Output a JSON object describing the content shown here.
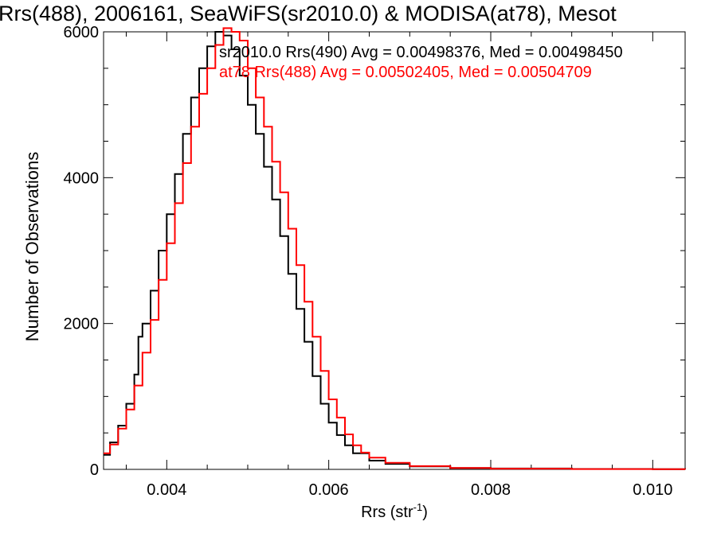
{
  "chart_data": {
    "type": "line",
    "title": "Rrs(488), 2006161, SeaWiFS(sr2010.0) & MODISA(at78), Mesot",
    "xlabel_main": "Rrs (str",
    "xlabel_sup": "-1",
    "xlabel_close": ")",
    "ylabel": "Number of Observations",
    "xlim": [
      0.00322,
      0.0104
    ],
    "ylim": [
      0,
      6000
    ],
    "x_ticks": [
      "0.004",
      "0.006",
      "0.008",
      "0.010"
    ],
    "x_tick_values": [
      0.004,
      0.006,
      0.008,
      0.01
    ],
    "y_ticks": [
      "0",
      "2000",
      "4000",
      "6000"
    ],
    "y_tick_values": [
      0,
      2000,
      4000,
      6000
    ],
    "grid": false,
    "legend_position": "top-right",
    "series": [
      {
        "name": "sr2010.0 Rrs(490) Avg = 0.00498376, Med = 0.00498450",
        "color": "#000000",
        "points": [
          [
            0.00322,
            200
          ],
          [
            0.0033,
            370
          ],
          [
            0.0034,
            600
          ],
          [
            0.0035,
            900
          ],
          [
            0.0036,
            1300
          ],
          [
            0.00365,
            1820
          ],
          [
            0.0037,
            2000
          ],
          [
            0.0038,
            2450
          ],
          [
            0.0039,
            3000
          ],
          [
            0.004,
            3500
          ],
          [
            0.0041,
            4050
          ],
          [
            0.0042,
            4600
          ],
          [
            0.0043,
            5100
          ],
          [
            0.0044,
            5500
          ],
          [
            0.0045,
            5800
          ],
          [
            0.0046,
            6000
          ],
          [
            0.0047,
            5950
          ],
          [
            0.0048,
            5760
          ],
          [
            0.0049,
            5400
          ],
          [
            0.005,
            5000
          ],
          [
            0.0051,
            4600
          ],
          [
            0.0052,
            4150
          ],
          [
            0.0053,
            3700
          ],
          [
            0.0054,
            3200
          ],
          [
            0.0055,
            2680
          ],
          [
            0.0056,
            2200
          ],
          [
            0.0057,
            1750
          ],
          [
            0.0058,
            1280
          ],
          [
            0.0059,
            900
          ],
          [
            0.006,
            640
          ],
          [
            0.0061,
            470
          ],
          [
            0.0062,
            330
          ],
          [
            0.0063,
            220
          ],
          [
            0.0065,
            120
          ],
          [
            0.0067,
            75
          ],
          [
            0.007,
            40
          ],
          [
            0.0075,
            20
          ],
          [
            0.008,
            12
          ],
          [
            0.009,
            5
          ],
          [
            0.01,
            2
          ],
          [
            0.0104,
            1
          ]
        ]
      },
      {
        "name": "at78 Rrs(488) Avg = 0.00502405, Med = 0.00504709",
        "color": "#ff0000",
        "points": [
          [
            0.00322,
            220
          ],
          [
            0.0033,
            340
          ],
          [
            0.0034,
            560
          ],
          [
            0.0035,
            820
          ],
          [
            0.0036,
            1150
          ],
          [
            0.0037,
            1600
          ],
          [
            0.0038,
            2050
          ],
          [
            0.0039,
            2600
          ],
          [
            0.004,
            3100
          ],
          [
            0.0041,
            3650
          ],
          [
            0.0042,
            4200
          ],
          [
            0.0043,
            4700
          ],
          [
            0.0044,
            5150
          ],
          [
            0.0045,
            5500
          ],
          [
            0.0046,
            5820
          ],
          [
            0.0047,
            6050
          ],
          [
            0.0048,
            6000
          ],
          [
            0.0049,
            5880
          ],
          [
            0.005,
            5500
          ],
          [
            0.0051,
            5100
          ],
          [
            0.0052,
            4700
          ],
          [
            0.0053,
            4220
          ],
          [
            0.0054,
            3800
          ],
          [
            0.0055,
            3300
          ],
          [
            0.0056,
            2800
          ],
          [
            0.0057,
            2300
          ],
          [
            0.0058,
            1820
          ],
          [
            0.0059,
            1350
          ],
          [
            0.006,
            960
          ],
          [
            0.0061,
            710
          ],
          [
            0.0062,
            480
          ],
          [
            0.0063,
            330
          ],
          [
            0.0064,
            230
          ],
          [
            0.0065,
            160
          ],
          [
            0.0067,
            90
          ],
          [
            0.007,
            45
          ],
          [
            0.0075,
            20
          ],
          [
            0.008,
            10
          ],
          [
            0.009,
            4
          ],
          [
            0.01,
            2
          ],
          [
            0.0104,
            1
          ]
        ]
      }
    ]
  }
}
